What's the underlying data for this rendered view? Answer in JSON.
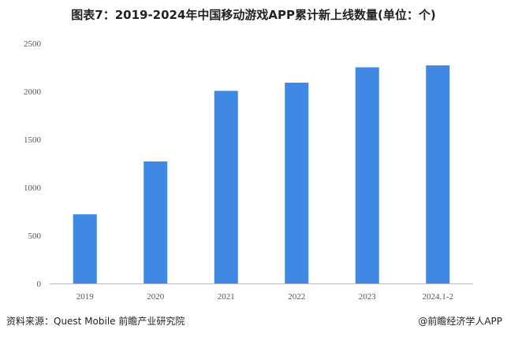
{
  "chart_data": {
    "type": "bar",
    "title": "图表7：2019-2024年中国移动游戏APP累计新上线数量(单位：个)",
    "categories": [
      "2019",
      "2020",
      "2021",
      "2022",
      "2023",
      "2024.1-2"
    ],
    "values": [
      720,
      1270,
      2005,
      2090,
      2250,
      2270
    ],
    "ylim": [
      0,
      2500
    ],
    "yticks": [
      0,
      500,
      1000,
      1500,
      2000,
      2500
    ],
    "xlabel": "",
    "ylabel": "",
    "grid": false,
    "bar_color": "#3f88e4"
  },
  "footer": {
    "source": "资料来源：Quest Mobile 前瞻产业研究院",
    "credit": "@前瞻经济学人APP"
  }
}
